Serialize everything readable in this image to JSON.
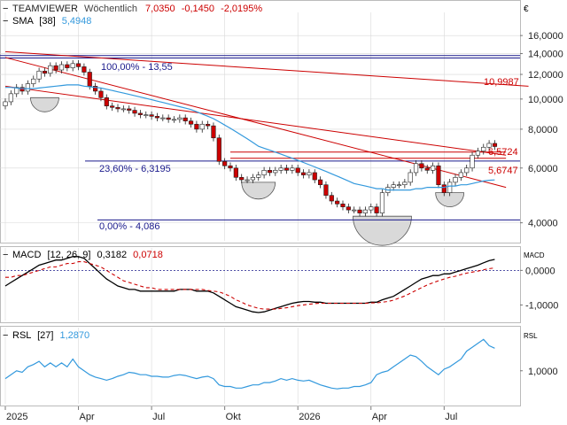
{
  "colors": {
    "up": "#ffffff",
    "down": "#cc0000",
    "candle_outline": "#222222",
    "trend": "#cc0000",
    "fib": "#1a1a8c",
    "sma": "#3399dd",
    "macd": "#000000",
    "signal": "#cc0000",
    "rsi": "#3399dd",
    "grid": "#d8d8d8",
    "zero": "#1a1a8c",
    "pattern": "#d9d9d9"
  },
  "header": {
    "collapse_glyph": "−",
    "symbol": "TEAMVIEWER",
    "period": "Wöchentlich",
    "last": "7,0350",
    "change": "-0,1450",
    "change_pct": "-2,0195%",
    "currency": "€"
  },
  "sma_legend": {
    "collapse_glyph": "−",
    "name": "SMA",
    "param": "[38]",
    "value": "5,4948"
  },
  "macd_legend": {
    "collapse_glyph": "−",
    "name": "MACD",
    "params": "[12, 26, 9]",
    "macd_value": "0,3182",
    "signal_value": "0,0718",
    "axis_title": "MACD"
  },
  "rsl_legend": {
    "collapse_glyph": "−",
    "name": "RSL",
    "param": "[27]",
    "value": "1,2870",
    "axis_title": "RSL"
  },
  "annotations": {
    "fib_100": "100,00% - 13,55",
    "fib_236": "23,60% - 6,3195",
    "fib_0": "0,00% - 4,086",
    "line_upper": "10,9987",
    "line_mid": "6,5724",
    "line_lower": "5,6747"
  },
  "chart_data": {
    "type": "candlestick",
    "scale": "log",
    "y_ticks": [
      "16,0000",
      "14,0000",
      "12,0000",
      "10,0000",
      "8,0000",
      "6,0000",
      "4,0000"
    ],
    "y_tick_values": [
      16,
      14,
      12,
      10,
      8,
      6,
      4
    ],
    "ylim": [
      3.5,
      18.5
    ],
    "x_labels": [
      "2025",
      "Apr",
      "Jul",
      "Okt",
      "2026",
      "Apr",
      "Jul"
    ],
    "x_label_index": [
      0,
      13,
      26,
      39,
      52,
      65,
      78
    ],
    "horizontal_levels": [
      13.55,
      6.3195,
      4.086,
      13.8
    ],
    "trendlines": [
      {
        "from": [
          0,
          14.2
        ],
        "to": [
          93,
          10.9987
        ]
      },
      {
        "from": [
          0,
          13.6
        ],
        "to": [
          89,
          5.2
        ]
      },
      {
        "from": [
          0,
          11.0
        ],
        "to": [
          89,
          6.6
        ]
      },
      {
        "from": [
          40,
          6.75
        ],
        "to": [
          89,
          6.75
        ]
      },
      {
        "from": [
          40,
          6.45
        ],
        "to": [
          89,
          6.45
        ]
      }
    ],
    "weekly_closes": [
      9.8,
      10.4,
      10.9,
      10.6,
      11.2,
      11.6,
      12.3,
      12.1,
      12.8,
      12.4,
      12.9,
      12.6,
      13.0,
      12.7,
      12.2,
      11.0,
      10.6,
      10.1,
      9.5,
      9.4,
      9.3,
      9.3,
      9.2,
      9.0,
      8.9,
      8.9,
      8.8,
      8.7,
      8.7,
      8.6,
      8.6,
      8.7,
      8.5,
      8.3,
      8.0,
      8.3,
      8.2,
      7.5,
      6.3,
      6.1,
      6.0,
      5.6,
      5.5,
      5.5,
      5.6,
      5.7,
      5.9,
      5.8,
      5.9,
      6.0,
      5.9,
      6.0,
      5.8,
      5.7,
      5.8,
      5.5,
      5.3,
      4.9,
      4.7,
      4.6,
      4.5,
      4.4,
      4.4,
      4.3,
      4.4,
      4.5,
      4.3,
      5.0,
      5.2,
      5.3,
      5.3,
      5.4,
      5.8,
      6.2,
      6.0,
      5.9,
      6.1,
      5.3,
      5.0,
      5.4,
      5.6,
      5.8,
      6.0,
      6.6,
      6.8,
      7.0,
      7.2,
      7.035
    ],
    "sma_38": [
      10.9,
      10.9,
      10.85,
      10.8,
      10.8,
      10.8,
      10.85,
      10.9,
      10.95,
      11.0,
      11.05,
      11.1,
      11.1,
      11.1,
      11.0,
      10.95,
      10.9,
      10.85,
      10.75,
      10.65,
      10.55,
      10.45,
      10.35,
      10.25,
      10.15,
      10.05,
      9.95,
      9.85,
      9.75,
      9.65,
      9.55,
      9.45,
      9.35,
      9.25,
      9.1,
      8.95,
      8.8,
      8.65,
      8.45,
      8.25,
      8.05,
      7.85,
      7.65,
      7.45,
      7.25,
      7.05,
      6.95,
      6.85,
      6.75,
      6.65,
      6.55,
      6.45,
      6.35,
      6.25,
      6.15,
      6.05,
      5.95,
      5.85,
      5.75,
      5.65,
      5.55,
      5.45,
      5.35,
      5.3,
      5.25,
      5.2,
      5.15,
      5.15,
      5.1,
      5.1,
      5.1,
      5.1,
      5.1,
      5.15,
      5.15,
      5.2,
      5.2,
      5.2,
      5.2,
      5.25,
      5.25,
      5.3,
      5.3,
      5.35,
      5.4,
      5.45,
      5.48,
      5.4948
    ],
    "macd": {
      "ticks": [
        "0,0000",
        "-1,0000"
      ],
      "tick_values": [
        0,
        -1
      ],
      "ylim": [
        -1.45,
        0.65
      ],
      "macd_line": [
        -0.45,
        -0.35,
        -0.25,
        -0.15,
        -0.05,
        0.05,
        0.15,
        0.2,
        0.25,
        0.3,
        0.3,
        0.35,
        0.4,
        0.4,
        0.35,
        0.2,
        0.05,
        -0.1,
        -0.25,
        -0.35,
        -0.45,
        -0.5,
        -0.55,
        -0.55,
        -0.6,
        -0.6,
        -0.6,
        -0.6,
        -0.6,
        -0.6,
        -0.6,
        -0.55,
        -0.55,
        -0.55,
        -0.6,
        -0.6,
        -0.6,
        -0.65,
        -0.75,
        -0.85,
        -0.95,
        -1.05,
        -1.1,
        -1.15,
        -1.2,
        -1.22,
        -1.2,
        -1.15,
        -1.1,
        -1.05,
        -1.0,
        -0.95,
        -0.92,
        -0.9,
        -0.9,
        -0.92,
        -0.92,
        -0.95,
        -0.95,
        -0.95,
        -0.95,
        -0.95,
        -0.95,
        -0.95,
        -0.95,
        -0.92,
        -0.92,
        -0.85,
        -0.8,
        -0.75,
        -0.65,
        -0.55,
        -0.45,
        -0.35,
        -0.25,
        -0.2,
        -0.15,
        -0.15,
        -0.1,
        -0.1,
        -0.05,
        0.0,
        0.05,
        0.1,
        0.15,
        0.22,
        0.28,
        0.3182
      ],
      "signal_line": [
        -0.2,
        -0.2,
        -0.15,
        -0.15,
        -0.1,
        -0.05,
        0.0,
        0.05,
        0.1,
        0.1,
        0.15,
        0.2,
        0.2,
        0.25,
        0.25,
        0.2,
        0.15,
        0.1,
        0.0,
        -0.1,
        -0.2,
        -0.3,
        -0.35,
        -0.4,
        -0.45,
        -0.5,
        -0.5,
        -0.55,
        -0.55,
        -0.55,
        -0.55,
        -0.55,
        -0.55,
        -0.55,
        -0.55,
        -0.55,
        -0.58,
        -0.6,
        -0.62,
        -0.68,
        -0.75,
        -0.85,
        -0.92,
        -1.0,
        -1.05,
        -1.1,
        -1.12,
        -1.12,
        -1.12,
        -1.1,
        -1.08,
        -1.05,
        -1.02,
        -1.0,
        -0.98,
        -0.96,
        -0.95,
        -0.95,
        -0.95,
        -0.95,
        -0.95,
        -0.95,
        -0.95,
        -0.95,
        -0.95,
        -0.94,
        -0.94,
        -0.92,
        -0.9,
        -0.86,
        -0.8,
        -0.74,
        -0.66,
        -0.58,
        -0.5,
        -0.42,
        -0.36,
        -0.3,
        -0.25,
        -0.2,
        -0.17,
        -0.12,
        -0.08,
        -0.05,
        -0.02,
        0.02,
        0.05,
        0.0718
      ]
    },
    "rsl": {
      "ticks": [
        "1,0000"
      ],
      "tick_values": [
        1.0
      ],
      "ylim": [
        0.58,
        1.55
      ],
      "values": [
        0.9,
        0.95,
        1.0,
        0.98,
        1.05,
        1.08,
        1.12,
        1.05,
        1.1,
        1.05,
        1.1,
        1.05,
        1.15,
        1.05,
        1.0,
        0.95,
        0.92,
        0.9,
        0.88,
        0.9,
        0.93,
        0.95,
        0.98,
        0.97,
        0.95,
        0.95,
        0.93,
        0.93,
        0.92,
        0.92,
        0.94,
        0.95,
        0.94,
        0.92,
        0.9,
        0.92,
        0.93,
        0.9,
        0.82,
        0.8,
        0.8,
        0.78,
        0.78,
        0.8,
        0.82,
        0.82,
        0.85,
        0.85,
        0.87,
        0.9,
        0.88,
        0.9,
        0.88,
        0.87,
        0.88,
        0.85,
        0.82,
        0.8,
        0.78,
        0.77,
        0.78,
        0.78,
        0.8,
        0.8,
        0.82,
        0.85,
        0.95,
        0.98,
        1.0,
        1.05,
        1.1,
        1.15,
        1.2,
        1.18,
        1.12,
        1.05,
        1.0,
        0.95,
        1.02,
        1.05,
        1.1,
        1.15,
        1.25,
        1.3,
        1.35,
        1.4,
        1.32,
        1.287
      ]
    }
  }
}
